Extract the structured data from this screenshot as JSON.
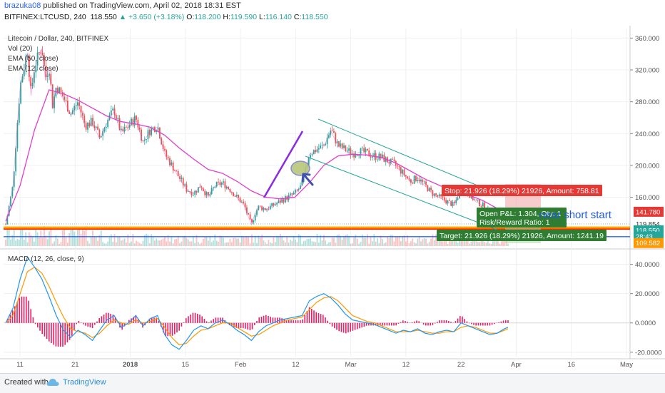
{
  "header": {
    "username": "brazuka08",
    "published_text": " published on TradingView.com, April 02, 2018 18:31 EST",
    "symbol_line": {
      "symbol": "BITFINEX:LTCUSD, 240",
      "last": "118.550",
      "change": "▲ +3.650 (+3.18%)",
      "o_label": "O:",
      "o_val": "118.200",
      "h_label": "H:",
      "h_val": "119.590",
      "l_label": "L:",
      "l_val": "116.140",
      "c_label": "C:",
      "c_val": "118.550"
    }
  },
  "legend": [
    "Litecoin / Dollar, 240, BITFINEX",
    "Vol (20)",
    "EMA (50, close)",
    "EMA (12, close)"
  ],
  "macd_legend": "MACD (12, 26, close, 9)",
  "colors": {
    "up": "#26a69a",
    "down": "#ef5350",
    "ema50": "#e040c8",
    "ema12": "#e040c8",
    "channel": "#26a69a",
    "impulse": "#8a2be2",
    "red_line": "#ff2a00",
    "orange_line": "#ffa500",
    "blue_line": "#2962ff",
    "macd": "#2196f3",
    "signal": "#ff9800",
    "hist": "#e91e63",
    "stop": "#e53935",
    "target": "#2e7d32"
  },
  "chart_data": [
    {
      "type": "candlestick",
      "title": "Litecoin / Dollar, 240, BITFINEX",
      "ylim": [
        96,
        372
      ],
      "y_ticks": [
        "360.000",
        "320.000",
        "280.000",
        "240.000",
        "200.000",
        "160.000"
      ],
      "x_ticks": [
        "11",
        "21",
        "2018",
        "15",
        "Feb",
        "12",
        "Mar",
        "12",
        "22",
        "Apr",
        "16",
        "May"
      ],
      "price_path": [
        [
          0,
          126
        ],
        [
          0.5,
          150
        ],
        [
          1.0,
          175
        ],
        [
          1.5,
          240
        ],
        [
          2.0,
          300
        ],
        [
          3.0,
          345
        ],
        [
          3.5,
          290
        ],
        [
          4.0,
          325
        ],
        [
          5.0,
          350
        ],
        [
          5.5,
          310
        ],
        [
          6.0,
          325
        ],
        [
          6.5,
          275
        ],
        [
          7.0,
          300
        ],
        [
          8.0,
          285
        ],
        [
          9.0,
          265
        ],
        [
          10.0,
          280
        ],
        [
          11.0,
          250
        ],
        [
          12.0,
          255
        ],
        [
          13.0,
          235
        ],
        [
          14.0,
          255
        ],
        [
          15.0,
          270
        ],
        [
          16.0,
          240
        ],
        [
          17.0,
          250
        ],
        [
          18.0,
          260
        ],
        [
          19.0,
          230
        ],
        [
          20.0,
          245
        ],
        [
          21.0,
          250
        ],
        [
          22.0,
          215
        ],
        [
          23.0,
          200
        ],
        [
          24.0,
          185
        ],
        [
          25.0,
          170
        ],
        [
          26.0,
          165
        ],
        [
          27.0,
          175
        ],
        [
          28.0,
          160
        ],
        [
          29.0,
          175
        ],
        [
          30.0,
          178
        ],
        [
          31.0,
          170
        ],
        [
          32.0,
          160
        ],
        [
          33.0,
          150
        ],
        [
          34.0,
          125
        ],
        [
          34.5,
          140
        ],
        [
          35.0,
          148
        ],
        [
          36.0,
          145
        ],
        [
          37.0,
          150
        ],
        [
          38.0,
          155
        ],
        [
          39.0,
          160
        ],
        [
          40.0,
          165
        ],
        [
          41.0,
          175
        ],
        [
          42.0,
          215
        ],
        [
          43.0,
          220
        ],
        [
          44.0,
          225
        ],
        [
          45.0,
          245
        ],
        [
          46.0,
          225
        ],
        [
          47.0,
          220
        ],
        [
          48.0,
          215
        ],
        [
          49.0,
          218
        ],
        [
          50.0,
          215
        ],
        [
          51.0,
          212
        ],
        [
          52.0,
          210
        ],
        [
          53.0,
          205
        ],
        [
          54.0,
          200
        ],
        [
          55.0,
          190
        ],
        [
          56.0,
          180
        ],
        [
          57.0,
          185
        ],
        [
          58.0,
          175
        ],
        [
          59.0,
          165
        ],
        [
          60.0,
          160
        ],
        [
          61.0,
          155
        ],
        [
          62.0,
          150
        ],
        [
          63.0,
          170
        ],
        [
          64.0,
          165
        ],
        [
          65.0,
          155
        ],
        [
          66.0,
          150
        ],
        [
          67.0,
          140
        ],
        [
          68.0,
          130
        ],
        [
          69.0,
          121
        ],
        [
          69.5,
          118.55
        ]
      ],
      "ema50_path": [
        [
          0,
          130
        ],
        [
          2,
          175
        ],
        [
          4,
          245
        ],
        [
          6,
          295
        ],
        [
          8,
          290
        ],
        [
          10,
          282
        ],
        [
          12,
          272
        ],
        [
          14,
          262
        ],
        [
          16,
          255
        ],
        [
          18,
          252
        ],
        [
          20,
          248
        ],
        [
          22,
          238
        ],
        [
          24,
          222
        ],
        [
          26,
          208
        ],
        [
          28,
          195
        ],
        [
          30,
          190
        ],
        [
          32,
          180
        ],
        [
          34,
          168
        ],
        [
          36,
          160
        ],
        [
          38,
          158
        ],
        [
          40,
          160
        ],
        [
          42,
          178
        ],
        [
          44,
          200
        ],
        [
          46,
          212
        ],
        [
          48,
          214
        ],
        [
          50,
          213
        ],
        [
          52,
          210
        ],
        [
          54,
          203
        ],
        [
          56,
          193
        ],
        [
          58,
          183
        ],
        [
          60,
          175
        ],
        [
          62,
          168
        ],
        [
          64,
          163
        ],
        [
          66,
          156
        ],
        [
          68,
          146
        ],
        [
          69.5,
          140
        ]
      ],
      "annotations": {
        "stop_label": "Stop: 21.926 (18.29%) 21926, Amount: 758.81",
        "open_pnl_label": "Open P&L: 1.304, Qty: 1",
        "risk_reward_label": "Risk/Reward Ratio: 1",
        "target_label": "Target: 21.926 (18.29%) 21926, Amount: 1241.19",
        "note": "near short start",
        "stop_price_label": "141.780",
        "entry_label": "119.854",
        "current_price_label": "118.550",
        "countdown_label": "28:43",
        "bottom_price_label": "109.582"
      }
    },
    {
      "type": "line",
      "title": "MACD (12, 26, close, 9)",
      "ylim": [
        -23,
        50
      ],
      "y_ticks": [
        "40.0000",
        "20.0000",
        "0.0000",
        "-20.0000"
      ],
      "series": [
        {
          "name": "MACD",
          "points": [
            [
              0,
              0
            ],
            [
              1,
              10
            ],
            [
              2,
              30
            ],
            [
              3,
              45
            ],
            [
              4,
              38
            ],
            [
              5,
              30
            ],
            [
              6,
              18
            ],
            [
              7,
              5
            ],
            [
              8,
              -5
            ],
            [
              9,
              -10
            ],
            [
              10,
              -5
            ],
            [
              11,
              -8
            ],
            [
              12,
              -12
            ],
            [
              13,
              -5
            ],
            [
              14,
              2
            ],
            [
              15,
              5
            ],
            [
              16,
              -3
            ],
            [
              17,
              0
            ],
            [
              18,
              5
            ],
            [
              19,
              -2
            ],
            [
              20,
              3
            ],
            [
              21,
              5
            ],
            [
              22,
              -8
            ],
            [
              23,
              -15
            ],
            [
              24,
              -18
            ],
            [
              25,
              -12
            ],
            [
              26,
              -5
            ],
            [
              27,
              -2
            ],
            [
              28,
              -4
            ],
            [
              29,
              0
            ],
            [
              30,
              2
            ],
            [
              31,
              -1
            ],
            [
              32,
              -5
            ],
            [
              33,
              -8
            ],
            [
              34,
              -12
            ],
            [
              35,
              -6
            ],
            [
              36,
              -2
            ],
            [
              37,
              0
            ],
            [
              38,
              2
            ],
            [
              39,
              3
            ],
            [
              40,
              4
            ],
            [
              41,
              5
            ],
            [
              42,
              15
            ],
            [
              43,
              18
            ],
            [
              44,
              20
            ],
            [
              45,
              17
            ],
            [
              46,
              12
            ],
            [
              47,
              6
            ],
            [
              48,
              2
            ],
            [
              49,
              1
            ],
            [
              50,
              0
            ],
            [
              51,
              -1
            ],
            [
              52,
              -3
            ],
            [
              53,
              -5
            ],
            [
              54,
              -7
            ],
            [
              55,
              -5
            ],
            [
              56,
              -6
            ],
            [
              57,
              -4
            ],
            [
              58,
              -7
            ],
            [
              59,
              -8
            ],
            [
              60,
              -6
            ],
            [
              61,
              -5
            ],
            [
              62,
              -6
            ],
            [
              63,
              0
            ],
            [
              64,
              -2
            ],
            [
              65,
              -4
            ],
            [
              66,
              -6
            ],
            [
              67,
              -8
            ],
            [
              68,
              -7
            ],
            [
              69,
              -4
            ],
            [
              69.5,
              -3
            ]
          ]
        },
        {
          "name": "Signal",
          "points": [
            [
              0,
              0
            ],
            [
              1,
              5
            ],
            [
              2,
              20
            ],
            [
              3,
              35
            ],
            [
              4,
              38
            ],
            [
              5,
              34
            ],
            [
              6,
              25
            ],
            [
              7,
              14
            ],
            [
              8,
              4
            ],
            [
              9,
              -4
            ],
            [
              10,
              -6
            ],
            [
              11,
              -7
            ],
            [
              12,
              -10
            ],
            [
              13,
              -7
            ],
            [
              14,
              -2
            ],
            [
              15,
              2
            ],
            [
              16,
              0
            ],
            [
              17,
              -1
            ],
            [
              18,
              2
            ],
            [
              19,
              0
            ],
            [
              20,
              1
            ],
            [
              21,
              3
            ],
            [
              22,
              -3
            ],
            [
              23,
              -10
            ],
            [
              24,
              -15
            ],
            [
              25,
              -14
            ],
            [
              26,
              -9
            ],
            [
              27,
              -5
            ],
            [
              28,
              -4
            ],
            [
              29,
              -2
            ],
            [
              30,
              0
            ],
            [
              31,
              0
            ],
            [
              32,
              -3
            ],
            [
              33,
              -6
            ],
            [
              34,
              -9
            ],
            [
              35,
              -8
            ],
            [
              36,
              -5
            ],
            [
              37,
              -2
            ],
            [
              38,
              0
            ],
            [
              39,
              2
            ],
            [
              40,
              3
            ],
            [
              41,
              4
            ],
            [
              42,
              9
            ],
            [
              43,
              14
            ],
            [
              44,
              17
            ],
            [
              45,
              18
            ],
            [
              46,
              15
            ],
            [
              47,
              10
            ],
            [
              48,
              5
            ],
            [
              49,
              3
            ],
            [
              50,
              1
            ],
            [
              51,
              0
            ],
            [
              52,
              -2
            ],
            [
              53,
              -4
            ],
            [
              54,
              -6
            ],
            [
              55,
              -6
            ],
            [
              56,
              -6
            ],
            [
              57,
              -5
            ],
            [
              58,
              -6
            ],
            [
              59,
              -7
            ],
            [
              60,
              -7
            ],
            [
              61,
              -6
            ],
            [
              62,
              -6
            ],
            [
              63,
              -3
            ],
            [
              64,
              -2
            ],
            [
              65,
              -3
            ],
            [
              66,
              -5
            ],
            [
              67,
              -7
            ],
            [
              68,
              -7
            ],
            [
              69,
              -5
            ],
            [
              69.5,
              -4
            ]
          ]
        }
      ]
    }
  ],
  "footer": {
    "created_with": "Created with",
    "brand": "TradingView"
  }
}
